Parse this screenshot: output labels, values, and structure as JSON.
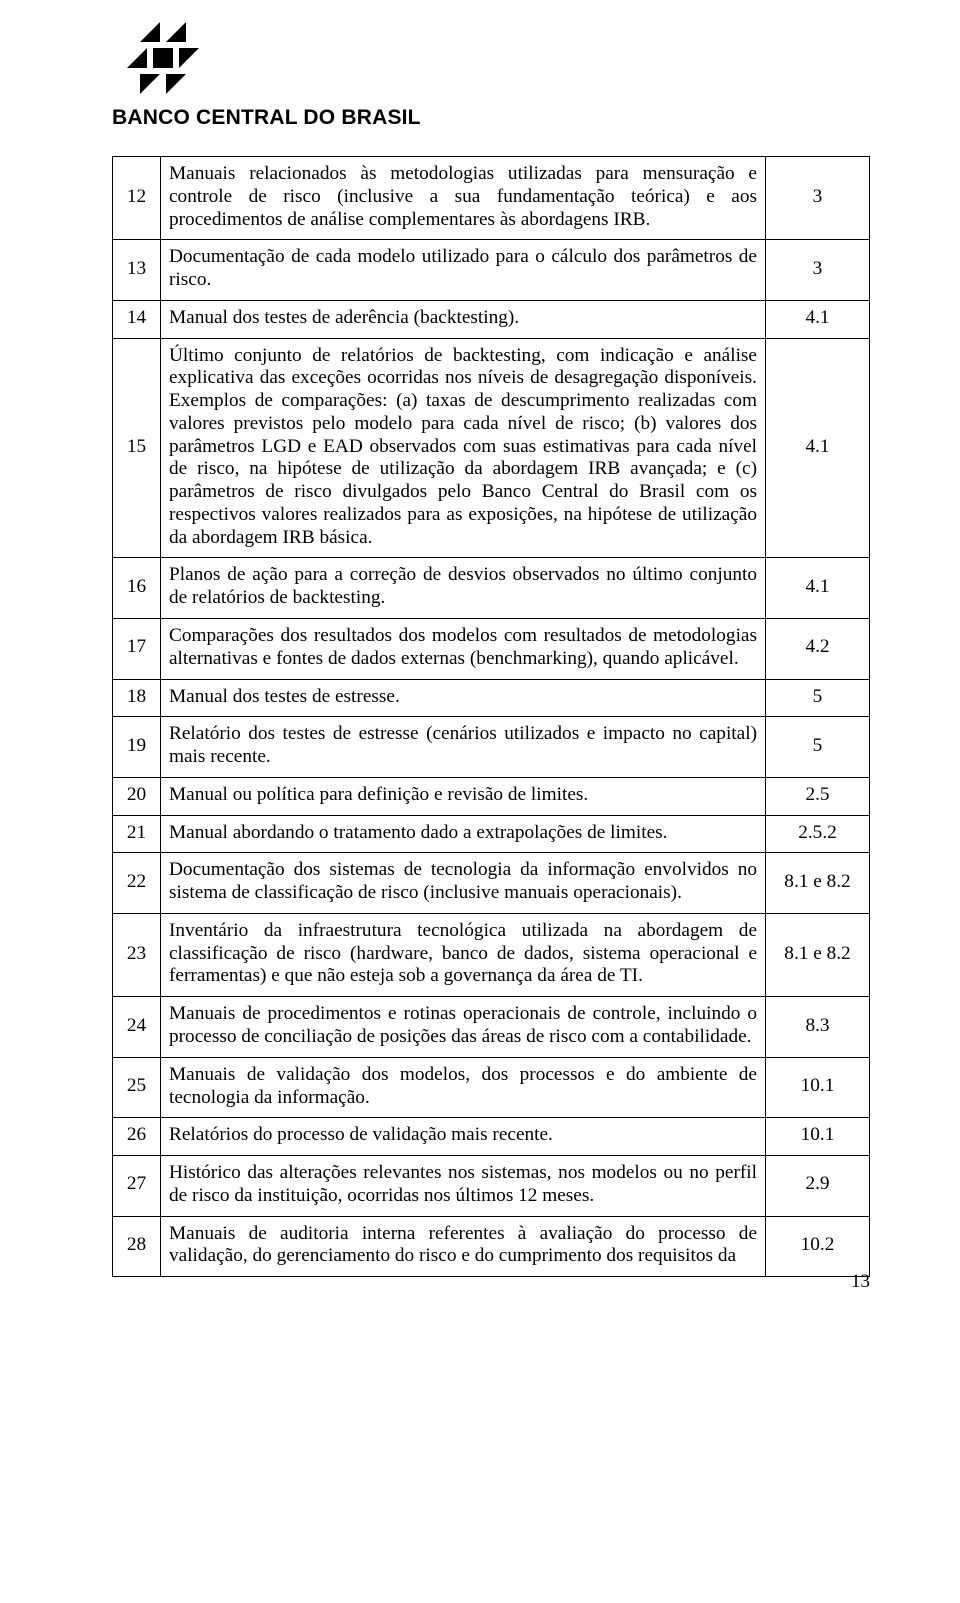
{
  "logo_text": "BANCO CENTRAL DO BRASIL",
  "page_number": "13",
  "rows": [
    {
      "n": "12",
      "desc": "Manuais relacionados às metodologias utilizadas para mensuração e controle de risco (inclusive a sua fundamentação teórica) e aos procedimentos de análise complementares às abordagens IRB.",
      "ref": "3"
    },
    {
      "n": "13",
      "desc": "Documentação de cada modelo utilizado para o cálculo dos parâmetros de risco.",
      "ref": "3"
    },
    {
      "n": "14",
      "desc": "Manual dos testes de aderência (backtesting).",
      "ref": "4.1"
    },
    {
      "n": "15",
      "desc": "Último conjunto de relatórios de backtesting, com indicação e análise explicativa das exceções ocorridas nos níveis de desagregação disponíveis. Exemplos de comparações: (a) taxas de descumprimento realizadas com valores previstos pelo modelo para cada nível de risco; (b) valores dos parâmetros LGD e EAD observados com suas estimativas para cada nível de risco, na hipótese de utilização da abordagem IRB avançada; e (c) parâmetros de risco divulgados pelo Banco Central do Brasil com os respectivos valores realizados para as exposições, na hipótese de utilização da abordagem IRB básica.",
      "ref": "4.1"
    },
    {
      "n": "16",
      "desc": "Planos de ação para a correção de desvios observados no último conjunto de relatórios de backtesting.",
      "ref": "4.1"
    },
    {
      "n": "17",
      "desc": "Comparações dos resultados dos modelos com resultados de metodologias alternativas e fontes de dados externas (benchmarking), quando aplicável.",
      "ref": "4.2"
    },
    {
      "n": "18",
      "desc": "Manual dos testes de estresse.",
      "ref": "5"
    },
    {
      "n": "19",
      "desc": "Relatório dos testes de estresse (cenários utilizados e impacto no capital) mais recente.",
      "ref": "5"
    },
    {
      "n": "20",
      "desc": "Manual ou política para definição e revisão de limites.",
      "ref": "2.5"
    },
    {
      "n": "21",
      "desc": "Manual abordando o tratamento dado a extrapolações de limites.",
      "ref": "2.5.2"
    },
    {
      "n": "22",
      "desc": "Documentação dos sistemas de tecnologia da informação envolvidos no sistema de classificação de risco (inclusive manuais operacionais).",
      "ref": "8.1 e 8.2"
    },
    {
      "n": "23",
      "desc": "Inventário da infraestrutura tecnológica utilizada na abordagem de classificação de risco (hardware, banco de dados, sistema operacional e ferramentas) e que não esteja sob a governança da área de TI.",
      "ref": "8.1 e 8.2"
    },
    {
      "n": "24",
      "desc": "Manuais de procedimentos e rotinas operacionais de controle, incluindo o processo de conciliação de posições das áreas de risco com a contabilidade.",
      "ref": "8.3"
    },
    {
      "n": "25",
      "desc": "Manuais de validação dos modelos, dos processos e do ambiente de tecnologia da informação.",
      "ref": "10.1"
    },
    {
      "n": "26",
      "desc": "Relatórios do processo de validação mais recente.",
      "ref": "10.1"
    },
    {
      "n": "27",
      "desc": "Histórico das alterações relevantes nos sistemas, nos modelos ou no perfil de risco da instituição, ocorridas nos últimos 12 meses.",
      "ref": "2.9"
    },
    {
      "n": "28",
      "desc": "Manuais de auditoria interna referentes à avaliação do processo de validação, do gerenciamento do risco e do cumprimento dos requisitos da",
      "ref": "10.2"
    }
  ]
}
